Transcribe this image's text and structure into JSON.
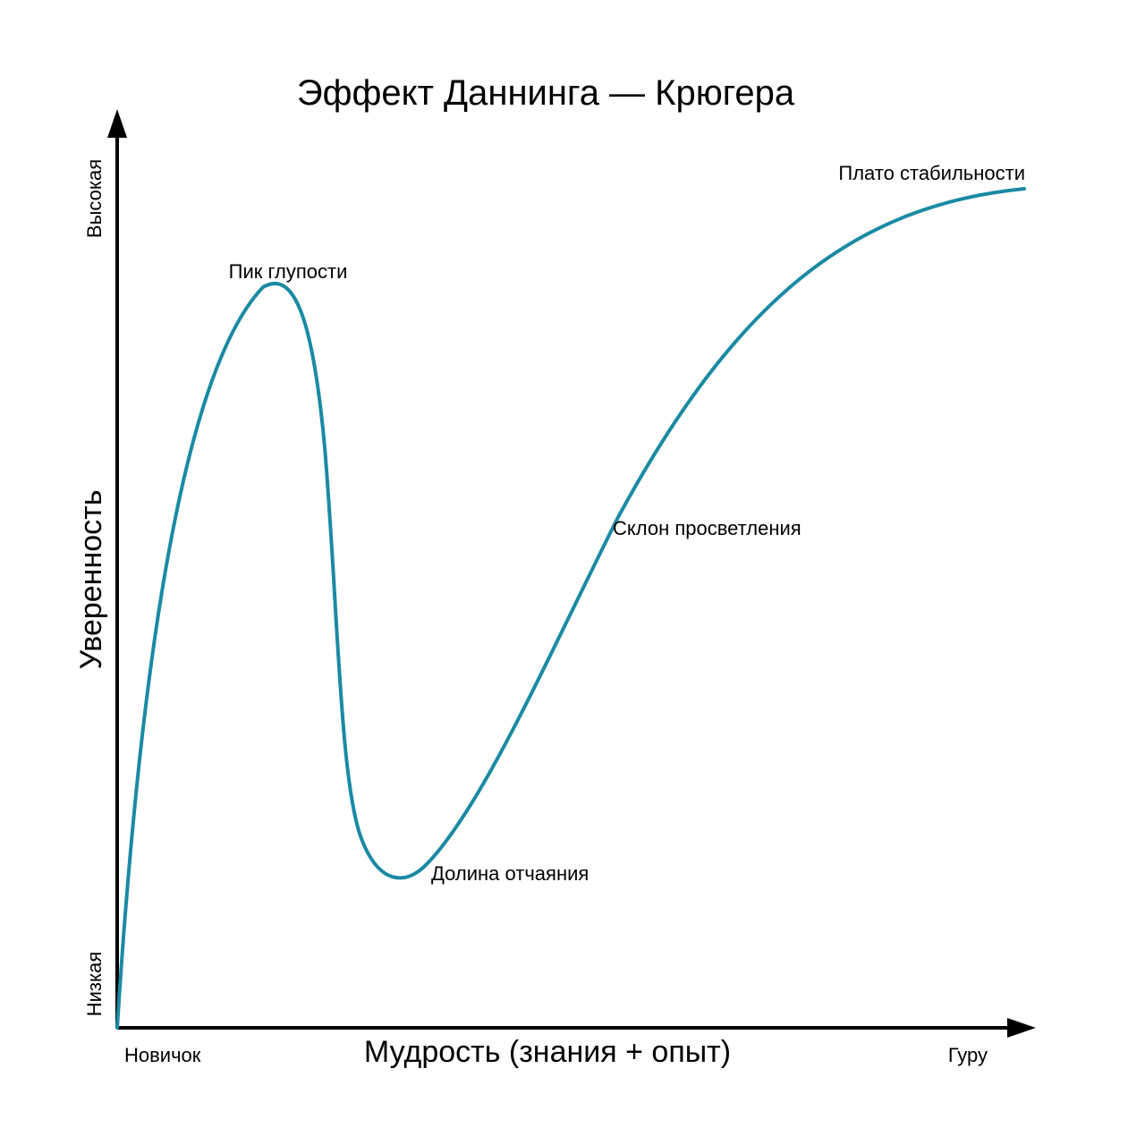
{
  "title": "Эффект Даннинга — Крюгера",
  "axes": {
    "x_label": "Мудрость (знания + опыт)",
    "y_label": "Уверенность",
    "x_start": "Новичок",
    "x_end": "Гуру",
    "y_low": "Низкая",
    "y_high": "Высокая"
  },
  "stages": {
    "peak": "Пик глупости",
    "valley": "Долина отчаяния",
    "slope": "Склон просветления",
    "plateau": "Плато стабильности"
  },
  "colors": {
    "curve": "#1a8aa3",
    "axis": "#000000"
  }
}
